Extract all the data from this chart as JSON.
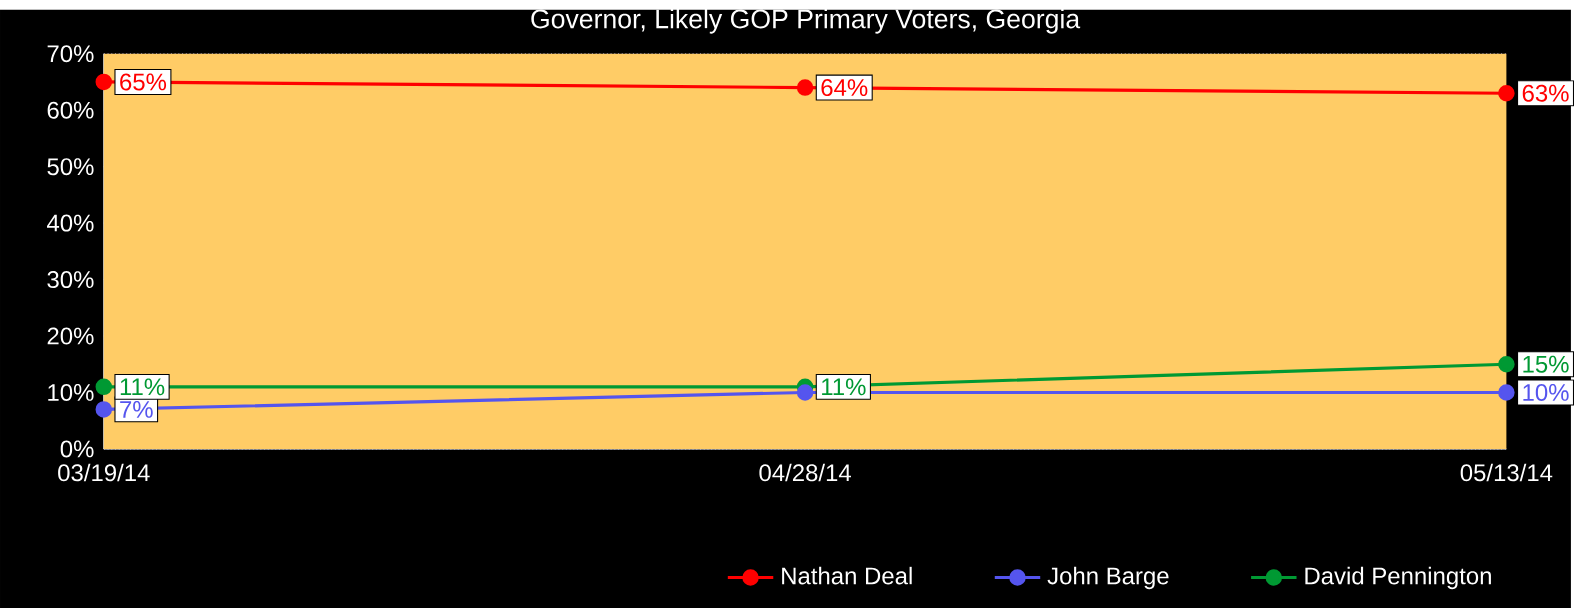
{
  "chart_data": {
    "type": "line",
    "title": "Governor, Likely GOP Primary Voters, Georgia",
    "categories": [
      "03/19/14",
      "04/28/14",
      "05/13/14"
    ],
    "series": [
      {
        "name": "Nathan Deal",
        "color": "#ff0000",
        "values": [
          65,
          64,
          63
        ],
        "value_labels": [
          "65%",
          "64%",
          "63%"
        ]
      },
      {
        "name": "John Barge",
        "color": "#5555ee",
        "values": [
          7,
          10,
          10
        ],
        "value_labels": [
          "7%",
          null,
          "10%"
        ]
      },
      {
        "name": "David Pennington",
        "color": "#009933",
        "values": [
          11,
          11,
          15
        ],
        "value_labels": [
          "11%",
          "11%",
          "15%"
        ]
      }
    ],
    "ylim": [
      0,
      70
    ],
    "yticks": [
      {
        "value": 0,
        "label": "0%"
      },
      {
        "value": 10,
        "label": "10%"
      },
      {
        "value": 20,
        "label": "20%"
      },
      {
        "value": 30,
        "label": "30%"
      },
      {
        "value": 40,
        "label": "40%"
      },
      {
        "value": 50,
        "label": "50%"
      },
      {
        "value": 60,
        "label": "60%"
      },
      {
        "value": 70,
        "label": "70%"
      }
    ],
    "grid": "y",
    "legend": "bottom",
    "marker": "circle",
    "line_style": "solid"
  }
}
